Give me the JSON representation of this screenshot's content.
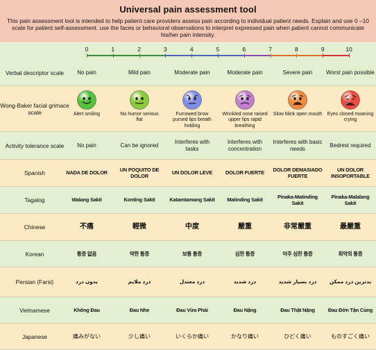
{
  "title": "Universal pain assessment tool",
  "intro": "This pain assessment tool is intended to help patient care providers assess pain according to individual patient needs. Explain and use 0 –10 scale for patient self-assessment. use the faces or behavioral observations to interpret expressed pain when patient cannot communicate his/her pain intensity.",
  "scale": {
    "numbers": [
      "0",
      "1",
      "2",
      "3",
      "4",
      "5",
      "6",
      "7",
      "8",
      "9",
      "10"
    ],
    "colors": [
      "#3a8a3a",
      "#3a8a3a",
      "#3a8a3a",
      "#4a5fc0",
      "#4a5fc0",
      "#4a5fc0",
      "#8c4aa8",
      "#e07030",
      "#e07030",
      "#d83030",
      "#d83030"
    ]
  },
  "rows": {
    "verbal": {
      "label": "Verbal descriptor scale",
      "values": [
        "No pain",
        "Mild pain",
        "Moderate pain",
        "Moderate pain",
        "Severe pain",
        "Worst pain possible"
      ]
    },
    "faces": {
      "label": "Wong-Baker facial grimace scale",
      "values": [
        "Alert smiling",
        "No humor serious flat",
        "Furrowed brow pursed lips breath holding",
        "Wrinkled nose raised upper lips rapid breathing",
        "Slow blink open mouth",
        "Eyes closed moaning crying"
      ],
      "icons": [
        "smiling-face-icon",
        "neutral-face-icon",
        "furrowed-face-icon",
        "wrinkled-face-icon",
        "grimace-face-icon",
        "crying-face-icon"
      ],
      "colors": [
        "#54c23a",
        "#8acb3c",
        "#7f8fe8",
        "#c27fd0",
        "#f08a3c",
        "#ef4b3c"
      ]
    },
    "activity": {
      "label": "Activity tolerance scale",
      "values": [
        "No pain",
        "Can be ignored",
        "Interferes with tasks",
        "Interferes with concentration",
        "Interferes with basic needs",
        "Bedrest required"
      ]
    },
    "spanish": {
      "label": "Spanish",
      "values": [
        "NADA DE DOLOR",
        "UN POQUITO DE DOLOR",
        "UN DOLOR LEVE",
        "DOLOR FUERTE",
        "DOLOR DEMASIADO FUERTE",
        "UN DOLOR INSOPORTABLE"
      ]
    },
    "tagalog": {
      "label": "Tagalog",
      "values": [
        "Walang Sakit",
        "Konting Sakit",
        "Katamtamang Sakit",
        "Matinding Sakit",
        "Pinaka-Matinding Sakit",
        "Pinaka-Malalang Sakit"
      ]
    },
    "chinese": {
      "label": "Chinese",
      "values": [
        "不痛",
        "輕微",
        "中度",
        "嚴重",
        "非常嚴重",
        "最嚴重"
      ]
    },
    "korean": {
      "label": "Korean",
      "values": [
        "통증 없음",
        "약한 통증",
        "보통 통증",
        "심한 통증",
        "아주 심한 통증",
        "최악의 통증"
      ]
    },
    "persian": {
      "label": "Persian (Farsi)",
      "values": [
        "بدون درد",
        "درد ملایم",
        "درد معتدل",
        "درد شدید",
        "درد بسیار شدید",
        "بدترین درد ممکن"
      ]
    },
    "vietnamese": {
      "label": "Vietnamese",
      "values": [
        "Không Đau",
        "Đau Nhe",
        "Đau Vừa Phải",
        "Đau Nặng",
        "Đau Thật Nặng",
        "Đau Đớn Tận Cùng"
      ]
    },
    "japanese": {
      "label": "Japanese",
      "values": [
        "痛みがない",
        "少し痛い",
        "いくらか痛い",
        "かなり痛い",
        "ひどく痛い",
        "ものすごく痛い"
      ]
    }
  }
}
